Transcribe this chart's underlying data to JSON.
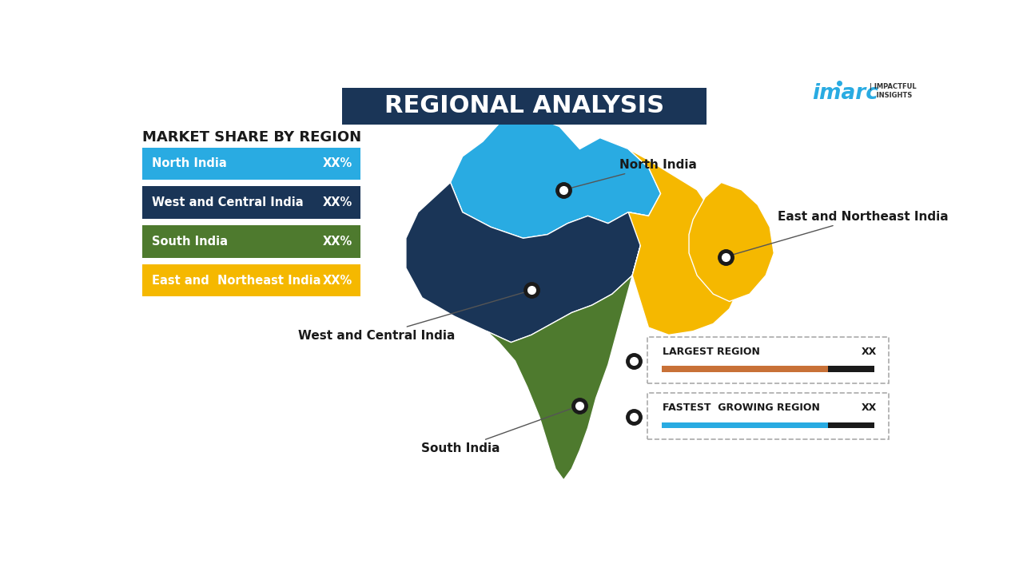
{
  "title": "REGIONAL ANALYSIS",
  "title_bg_color": "#1a3557",
  "title_text_color": "#ffffff",
  "background_color": "#ffffff",
  "legend_title": "MARKET SHARE BY REGION",
  "legend_items": [
    {
      "label": "North India",
      "value": "XX%",
      "color": "#29abe2"
    },
    {
      "label": "West and Central India",
      "value": "XX%",
      "color": "#1a3557"
    },
    {
      "label": "South India",
      "value": "XX%",
      "color": "#4e7a2e"
    },
    {
      "label": "East and  Northeast India",
      "value": "XX%",
      "color": "#f5b800"
    }
  ],
  "map_region_colors": {
    "north": "#29abe2",
    "west_central": "#1a3557",
    "south": "#4e7a2e",
    "east_northeast": "#f5b800"
  },
  "bottom_boxes": [
    {
      "label": "LARGEST REGION",
      "value": "XX",
      "bar_color": "#c87137",
      "bar_end_color": "#1a1a1a"
    },
    {
      "label": "FASTEST  GROWING REGION",
      "value": "XX",
      "bar_color": "#29abe2",
      "bar_end_color": "#1a1a1a"
    }
  ],
  "imarc_color": "#29abe2",
  "imarc_dot_color": "#29abe2"
}
